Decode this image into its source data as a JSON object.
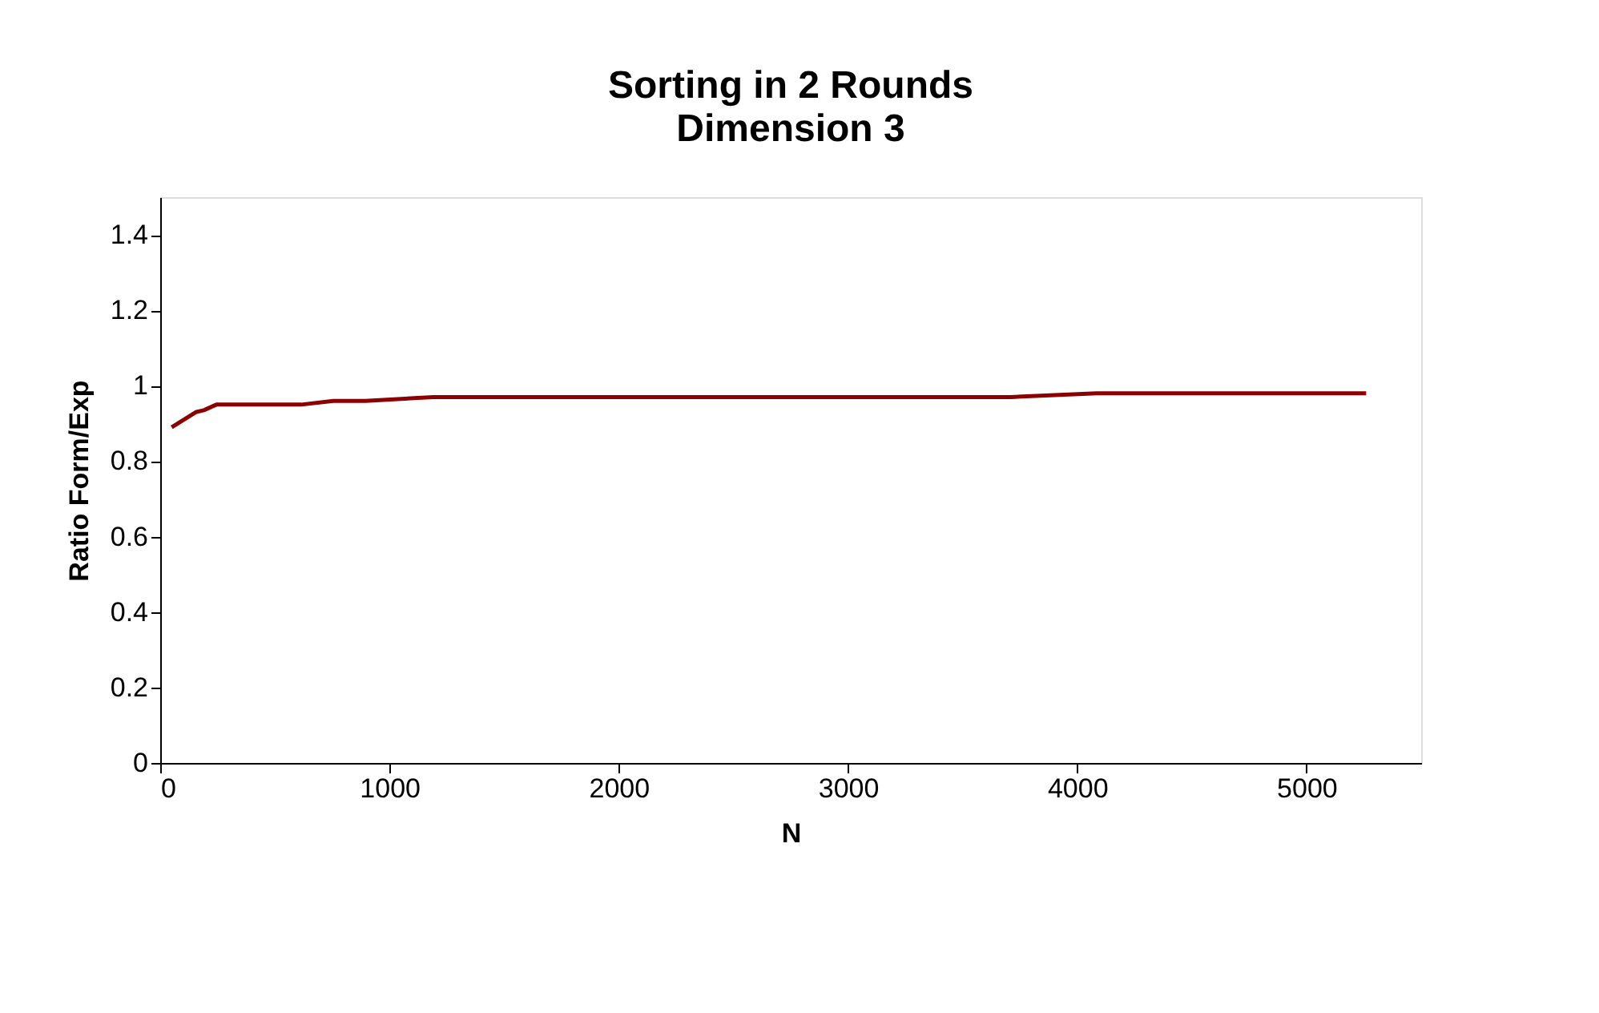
{
  "chart_data": {
    "type": "line",
    "title": "Sorting  in  2  Rounds",
    "subtitle": "Dimension   3",
    "xlabel": "N",
    "ylabel": "Ratio   Form/Exp",
    "x": [
      50,
      155,
      190,
      245,
      330,
      415,
      505,
      615,
      755,
      895,
      1190,
      1340,
      1470,
      1655,
      1845,
      1965,
      2105,
      2220,
      2385,
      2530,
      2715,
      2970,
      3310,
      3710,
      4085,
      4500,
      4875,
      5260
    ],
    "series": [
      {
        "color": "#8b0000",
        "values": [
          0.89,
          0.93,
          0.935,
          0.95,
          0.95,
          0.95,
          0.95,
          0.95,
          0.96,
          0.96,
          0.97,
          0.97,
          0.97,
          0.97,
          0.97,
          0.97,
          0.97,
          0.97,
          0.97,
          0.97,
          0.97,
          0.97,
          0.97,
          0.97,
          0.98,
          0.98,
          0.98,
          0.98
        ]
      }
    ],
    "xlim": [
      0,
      5500
    ],
    "xticks": [
      0,
      1000,
      2000,
      3000,
      4000,
      5000
    ],
    "ylim": [
      0,
      1.5
    ],
    "yticks": [
      0,
      0.2,
      0.4,
      0.6,
      0.8,
      1,
      1.2,
      1.4
    ],
    "grid": false,
    "marker": "none",
    "line_style": "solid"
  }
}
